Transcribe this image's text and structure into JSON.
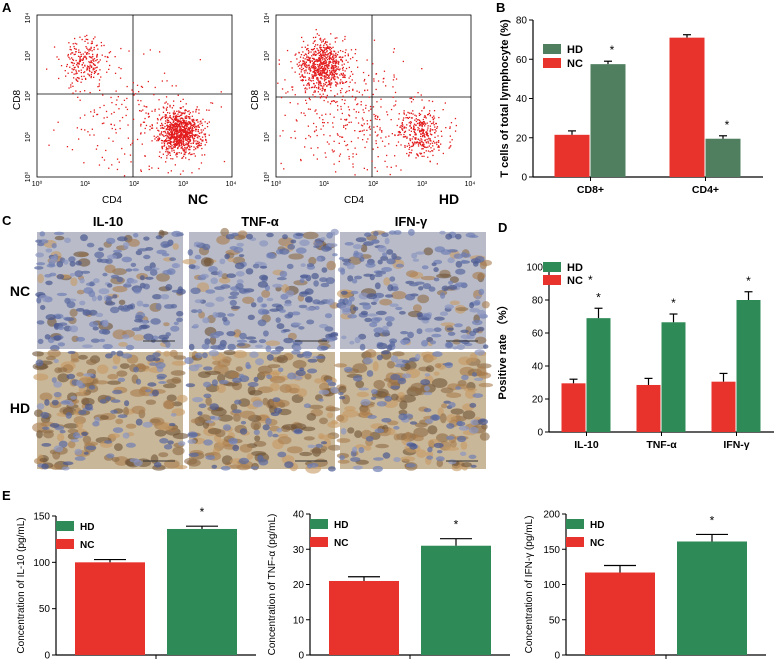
{
  "colors": {
    "hd_b": "#4f7f5f",
    "hd": "#2e8b57",
    "nc": "#e8322c",
    "dot": "#e31a1c",
    "axis": "#000000"
  },
  "panel_labels": [
    "A",
    "B",
    "C",
    "D",
    "E"
  ],
  "flow": [
    {
      "group": "NC",
      "xlabel": "CD4",
      "ylabel": "CD8",
      "xticks": [
        "10⁰",
        "10¹",
        "10²",
        "10³",
        "10⁴"
      ],
      "yticks": [
        "10⁰",
        "10¹",
        "10²",
        "10³",
        "10⁴"
      ]
    },
    {
      "group": "HD",
      "xlabel": "CD4",
      "ylabel": "CD8",
      "xticks": [
        "10⁰",
        "10¹",
        "10²",
        "10³",
        "10⁴"
      ],
      "yticks": [
        "10⁰",
        "10¹",
        "10²",
        "10³",
        "10⁴"
      ]
    }
  ],
  "ihc": {
    "columns": [
      "IL-10",
      "TNF-α",
      "IFN-γ"
    ],
    "rows": [
      "NC",
      "HD"
    ]
  },
  "chart_data": [
    {
      "id": "B",
      "type": "bar",
      "categories": [
        "CD8+",
        "CD4+"
      ],
      "series": [
        {
          "name": "NC",
          "values": [
            21.5,
            71
          ],
          "errors": [
            2,
            1.5
          ]
        },
        {
          "name": "HD",
          "values": [
            57.5,
            19.5
          ],
          "errors": [
            1.5,
            1.5
          ]
        }
      ],
      "significance": [
        "*",
        "*"
      ],
      "ylabel": "T cells of total lymphocyte (%)",
      "ylim": [
        0,
        80
      ],
      "yticks": [
        "0",
        "20",
        "40",
        "60",
        "80"
      ],
      "legend": [
        "HD",
        "NC"
      ]
    },
    {
      "id": "D",
      "type": "bar",
      "categories": [
        "IL-10",
        "TNF-α",
        "IFN-γ"
      ],
      "series": [
        {
          "name": "NC",
          "values": [
            29.5,
            28.5,
            30.5
          ],
          "errors": [
            2.5,
            4,
            5
          ]
        },
        {
          "name": "HD",
          "values": [
            69,
            66.5,
            80
          ],
          "errors": [
            6,
            5,
            5
          ]
        }
      ],
      "significance": [
        "*",
        "*",
        "*"
      ],
      "ylabel": "Positive rate （%）",
      "ylim": [
        0,
        100
      ],
      "yticks": [
        "0",
        "20",
        "40",
        "60",
        "80",
        "100"
      ],
      "legend": [
        "HD",
        "NC"
      ]
    },
    {
      "id": "E1",
      "type": "bar",
      "categories": [
        "NC",
        "HD"
      ],
      "values": [
        100,
        136
      ],
      "errors": [
        3,
        3
      ],
      "significance": "*",
      "ylabel": "Concentration of IL-10 (pg/mL)",
      "ylim": [
        0,
        150
      ],
      "yticks": [
        "0",
        "50",
        "100",
        "150"
      ],
      "legend": [
        "HD",
        "NC"
      ]
    },
    {
      "id": "E2",
      "type": "bar",
      "categories": [
        "NC",
        "HD"
      ],
      "values": [
        21,
        31
      ],
      "errors": [
        1.2,
        2
      ],
      "significance": "*",
      "ylabel": "Concentration of TNF-α (pg/mL)",
      "ylim": [
        0,
        40
      ],
      "yticks": [
        "0",
        "10",
        "20",
        "30",
        "40"
      ],
      "legend": [
        "HD",
        "NC"
      ]
    },
    {
      "id": "E3",
      "type": "bar",
      "categories": [
        "NC",
        "HD"
      ],
      "values": [
        117,
        161
      ],
      "errors": [
        10,
        10
      ],
      "significance": "*",
      "ylabel": "Concentration of IFN-γ  (pg/mL)",
      "ylim": [
        0,
        200
      ],
      "yticks": [
        "0",
        "50",
        "100",
        "150",
        "200"
      ],
      "legend": [
        "HD",
        "NC"
      ]
    }
  ]
}
